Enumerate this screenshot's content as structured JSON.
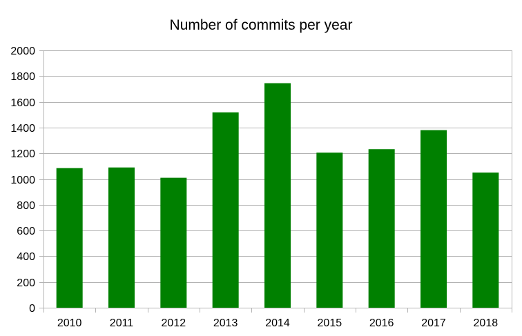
{
  "chart_data": {
    "type": "bar",
    "title": "Number of commits per year",
    "xlabel": "",
    "ylabel": "",
    "categories": [
      "2010",
      "2011",
      "2012",
      "2013",
      "2014",
      "2015",
      "2016",
      "2017",
      "2018"
    ],
    "values": [
      1085,
      1090,
      1010,
      1518,
      1745,
      1205,
      1232,
      1380,
      1050
    ],
    "ylim": [
      0,
      2000
    ],
    "yticks": [
      0,
      200,
      400,
      600,
      800,
      1000,
      1200,
      1400,
      1600,
      1800,
      2000
    ],
    "grid": true,
    "legend": "none",
    "colors": {
      "bar": "#008000",
      "grid": "#b3b3b3"
    }
  }
}
